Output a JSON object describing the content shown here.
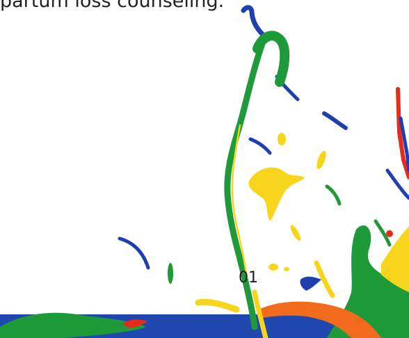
{
  "heading": {
    "text": "partum loss counseling."
  },
  "footer": {
    "page_number": "01"
  },
  "colors": {
    "band": "#1f47ad",
    "green": "#1f9a3a",
    "yellow": "#f7d51d",
    "blue": "#1f3fae",
    "red": "#e52b1b",
    "orange": "#f26a1b",
    "text": "#222222"
  },
  "decor": {
    "icon": "paint-splash-icon"
  }
}
